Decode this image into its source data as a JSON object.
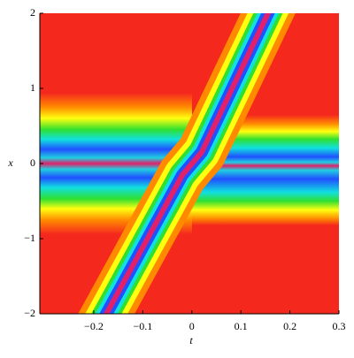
{
  "chart_data": {
    "type": "density",
    "x_label": "t",
    "y_label": "x",
    "xlim": [
      -0.31,
      0.3
    ],
    "ylim": [
      -2,
      2
    ],
    "xticks": [
      {
        "value": -0.2,
        "label": "−0.2"
      },
      {
        "value": -0.1,
        "label": "−0.1"
      },
      0,
      0.1,
      0.2,
      0.3
    ],
    "yticks": [
      {
        "value": -2,
        "label": "−2"
      },
      {
        "value": -1,
        "label": "−1"
      },
      0,
      1,
      2
    ]
  }
}
